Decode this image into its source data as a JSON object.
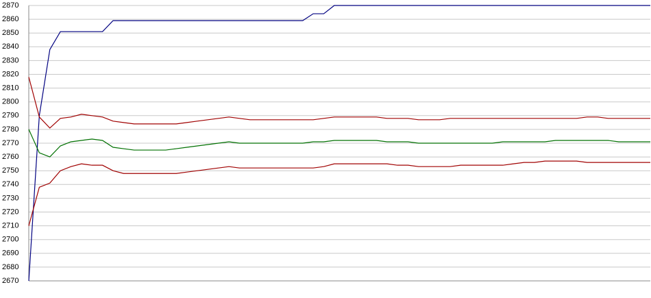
{
  "chart_data": {
    "type": "line",
    "ylim": [
      2670,
      2870
    ],
    "yticks": [
      2670,
      2680,
      2690,
      2700,
      2710,
      2720,
      2730,
      2740,
      2750,
      2760,
      2770,
      2780,
      2790,
      2800,
      2810,
      2820,
      2830,
      2840,
      2850,
      2860,
      2870
    ],
    "grid": true,
    "series": [
      {
        "color": "#000080",
        "values": [
          2670,
          2790,
          2838,
          2851,
          2851,
          2851,
          2851,
          2851,
          2859,
          2859,
          2859,
          2859,
          2859,
          2859,
          2859,
          2859,
          2859,
          2859,
          2859,
          2859,
          2859,
          2859,
          2859,
          2859,
          2859,
          2859,
          2859,
          2864,
          2864,
          2870,
          2870,
          2870,
          2870,
          2870,
          2870,
          2870,
          2870,
          2870,
          2870,
          2870,
          2870,
          2870,
          2870,
          2870,
          2870,
          2870,
          2870,
          2870,
          2870,
          2870,
          2870,
          2870,
          2870,
          2870,
          2870,
          2870,
          2870,
          2870,
          2870,
          2870
        ]
      },
      {
        "color": "#a00000",
        "values": [
          2818,
          2789,
          2781,
          2788,
          2789,
          2791,
          2790,
          2789,
          2786,
          2785,
          2784,
          2784,
          2784,
          2784,
          2784,
          2785,
          2786,
          2787,
          2788,
          2789,
          2788,
          2787,
          2787,
          2787,
          2787,
          2787,
          2787,
          2787,
          2788,
          2789,
          2789,
          2789,
          2789,
          2789,
          2788,
          2788,
          2788,
          2787,
          2787,
          2787,
          2788,
          2788,
          2788,
          2788,
          2788,
          2788,
          2788,
          2788,
          2788,
          2788,
          2788,
          2788,
          2788,
          2789,
          2789,
          2788,
          2788,
          2788,
          2788,
          2788
        ]
      },
      {
        "color": "#007000",
        "values": [
          2780,
          2763,
          2760,
          2768,
          2771,
          2772,
          2773,
          2772,
          2767,
          2766,
          2765,
          2765,
          2765,
          2765,
          2766,
          2767,
          2768,
          2769,
          2770,
          2771,
          2770,
          2770,
          2770,
          2770,
          2770,
          2770,
          2770,
          2771,
          2771,
          2772,
          2772,
          2772,
          2772,
          2772,
          2771,
          2771,
          2771,
          2770,
          2770,
          2770,
          2770,
          2770,
          2770,
          2770,
          2770,
          2771,
          2771,
          2771,
          2771,
          2771,
          2772,
          2772,
          2772,
          2772,
          2772,
          2772,
          2771,
          2771,
          2771,
          2771
        ]
      },
      {
        "color": "#a00000",
        "values": [
          2710,
          2738,
          2741,
          2750,
          2753,
          2755,
          2754,
          2754,
          2750,
          2748,
          2748,
          2748,
          2748,
          2748,
          2748,
          2749,
          2750,
          2751,
          2752,
          2753,
          2752,
          2752,
          2752,
          2752,
          2752,
          2752,
          2752,
          2752,
          2753,
          2755,
          2755,
          2755,
          2755,
          2755,
          2755,
          2754,
          2754,
          2753,
          2753,
          2753,
          2753,
          2754,
          2754,
          2754,
          2754,
          2754,
          2755,
          2756,
          2756,
          2757,
          2757,
          2757,
          2757,
          2756,
          2756,
          2756,
          2756,
          2756,
          2756,
          2756
        ]
      }
    ]
  }
}
